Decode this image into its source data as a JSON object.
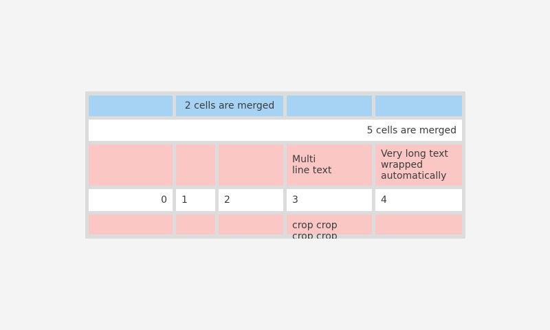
{
  "page": {
    "background_color": "#f4f4f4"
  },
  "table": {
    "widget_name": "table",
    "colors": {
      "container": "#dcdcdc",
      "header_blue": "#a6d3f3",
      "row_pink": "#fbc7c5",
      "row_white": "#ffffff",
      "text": "#3b3b3b"
    },
    "columns_count": 5,
    "rows": [
      {
        "name": "blue-header-row",
        "cells": [
          {
            "text": "",
            "span": 1
          },
          {
            "text": "2 cells are merged",
            "span": 2
          },
          {
            "text": "",
            "span": 1
          },
          {
            "text": "",
            "span": 1
          }
        ]
      },
      {
        "name": "full-merged-row",
        "cells": [
          {
            "text": "5 cells are merged",
            "span": 5
          }
        ]
      },
      {
        "name": "pink-tall-row",
        "cells": [
          {
            "text": "",
            "span": 1
          },
          {
            "text": "",
            "span": 1
          },
          {
            "text": "",
            "span": 1
          },
          {
            "text": "Multi\nline text",
            "span": 1
          },
          {
            "text": "Very long text wrapped automatically",
            "span": 1
          }
        ]
      },
      {
        "name": "numbers-row",
        "cells": [
          {
            "text": "0",
            "span": 1
          },
          {
            "text": "1",
            "span": 1
          },
          {
            "text": "2",
            "span": 1
          },
          {
            "text": "3",
            "span": 1
          },
          {
            "text": "4",
            "span": 1
          }
        ]
      },
      {
        "name": "cropped-row",
        "cells": [
          {
            "text": "",
            "span": 1
          },
          {
            "text": "",
            "span": 1
          },
          {
            "text": "",
            "span": 1
          },
          {
            "text": "crop crop\ncrop crop",
            "span": 1
          },
          {
            "text": "",
            "span": 1
          }
        ]
      }
    ]
  }
}
